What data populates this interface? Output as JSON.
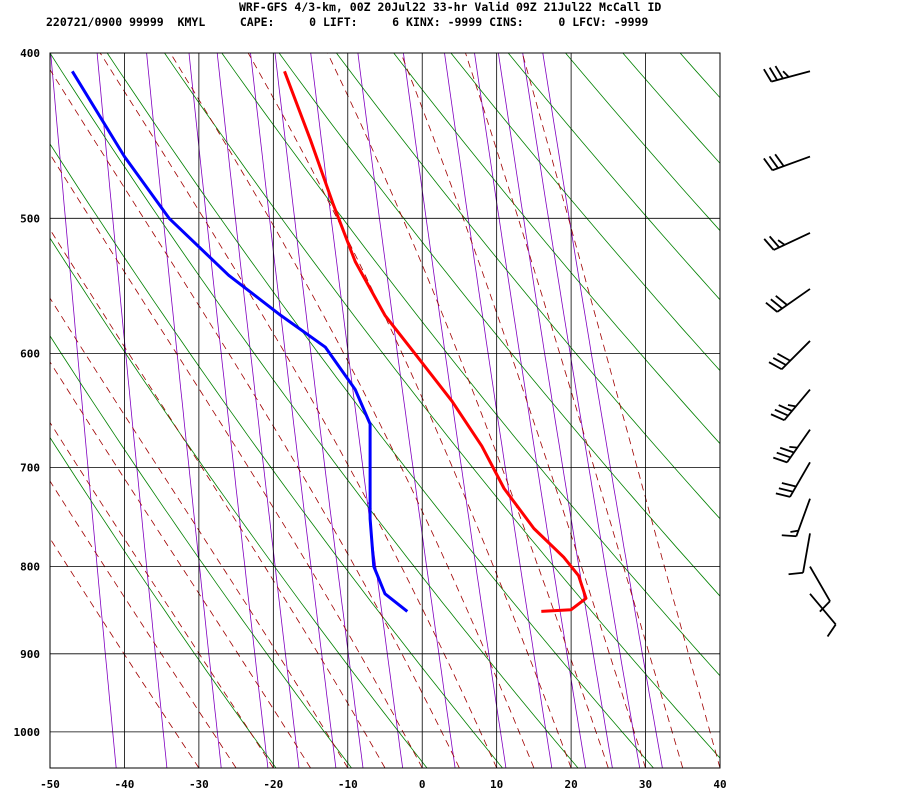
{
  "header": {
    "line1": "WRF-GFS 4/3-km, 00Z 20Jul22 33-hr Valid 09Z 21Jul22 McCall ID",
    "line2": "220721/0900 99999  KMYL     CAPE:     0 LIFT:     6 KINX: -9999 CINS:     0 LFCV: -9999"
  },
  "chart_data": {
    "type": "line",
    "title": "WRF-GFS 4/3-km, 00Z 20Jul22 33-hr Valid 09Z 21Jul22 McCall ID",
    "xlabel": "",
    "ylabel": "",
    "xlim": [
      -50,
      40
    ],
    "ylim": [
      1050,
      400
    ],
    "x_ticks": [
      "-50",
      "-40",
      "-30",
      "-20",
      "-10",
      "0",
      "10",
      "20",
      "30",
      "40"
    ],
    "y_ticks": [
      "400",
      "500",
      "600",
      "700",
      "800",
      "900",
      "1000"
    ],
    "y_tick_values": [
      400,
      500,
      600,
      700,
      800,
      900,
      1000
    ],
    "grid": true,
    "series": [
      {
        "color": "#ff0000",
        "points": [
          [
            -18.5,
            410
          ],
          [
            -15,
            450
          ],
          [
            -12,
            490
          ],
          [
            -9,
            530
          ],
          [
            -5,
            570
          ],
          [
            -1,
            600
          ],
          [
            4,
            640
          ],
          [
            8,
            680
          ],
          [
            11,
            720
          ],
          [
            15,
            760
          ],
          [
            19,
            790
          ],
          [
            21,
            810
          ],
          [
            22,
            835
          ],
          [
            20,
            848
          ],
          [
            16,
            850
          ]
        ]
      },
      {
        "color": "#0000ff",
        "points": [
          [
            -47,
            410
          ],
          [
            -40,
            460
          ],
          [
            -34,
            500
          ],
          [
            -26,
            540
          ],
          [
            -19,
            570
          ],
          [
            -13,
            595
          ],
          [
            -9,
            630
          ],
          [
            -7,
            660
          ],
          [
            -7,
            700
          ],
          [
            -7,
            750
          ],
          [
            -6.5,
            800
          ],
          [
            -5,
            830
          ],
          [
            -2,
            850
          ]
        ]
      }
    ],
    "background_lines": {
      "isotherm_color": "#000000",
      "dry_adiabat_color": "#008000",
      "moist_adiabat_color": "#a00000",
      "mixing_ratio_color": "#8000c0"
    },
    "wind_barbs": [
      {
        "pressure": 410,
        "speed_kt": 35,
        "dir_deg": 255
      },
      {
        "pressure": 460,
        "speed_kt": 30,
        "dir_deg": 250
      },
      {
        "pressure": 510,
        "speed_kt": 25,
        "dir_deg": 245
      },
      {
        "pressure": 550,
        "speed_kt": 30,
        "dir_deg": 235
      },
      {
        "pressure": 590,
        "speed_kt": 30,
        "dir_deg": 225
      },
      {
        "pressure": 630,
        "speed_kt": 35,
        "dir_deg": 220
      },
      {
        "pressure": 665,
        "speed_kt": 35,
        "dir_deg": 215
      },
      {
        "pressure": 695,
        "speed_kt": 30,
        "dir_deg": 210
      },
      {
        "pressure": 730,
        "speed_kt": 15,
        "dir_deg": 200
      },
      {
        "pressure": 765,
        "speed_kt": 10,
        "dir_deg": 190
      },
      {
        "pressure": 800,
        "speed_kt": 10,
        "dir_deg": 150
      },
      {
        "pressure": 830,
        "speed_kt": 10,
        "dir_deg": 140
      }
    ]
  }
}
